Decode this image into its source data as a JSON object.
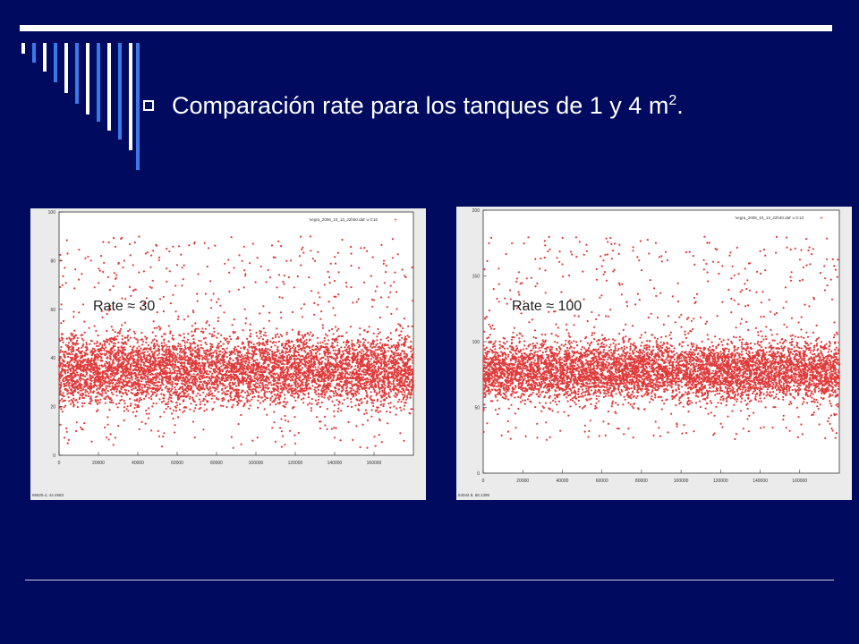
{
  "slide": {
    "title_main": "Comparación rate para los tanques de 1 y 4 m",
    "title_sup": "2",
    "title_end": "."
  },
  "colors": {
    "background": "#000a5e",
    "accent_stripes": [
      "#ffffff",
      "#3b79e6"
    ],
    "points": "#e03a3a"
  },
  "chart_data": [
    {
      "type": "scatter",
      "title": "",
      "annotation": "Rate ≈ 30",
      "legend": "'vegra_2006_10_13_22h50.dat' u 0:10",
      "legend_placement": "top-right",
      "xlim": [
        0,
        180000
      ],
      "ylim": [
        0,
        100
      ],
      "xticks": [
        "0",
        "20000",
        "40000",
        "60000",
        "80000",
        "100000",
        "120000",
        "140000",
        "160000"
      ],
      "yticks": [
        "0",
        "20",
        "40",
        "60",
        "80",
        "100"
      ],
      "status_text": "66825.4,  44.4583",
      "grid": false,
      "mean_rate": 30,
      "dense_range": [
        15,
        55
      ],
      "max_outlier": 90,
      "min_value": 3
    },
    {
      "type": "scatter",
      "title": "",
      "annotation": "Rate ≈ 100",
      "legend": "'vegra_2006_10_13_22h40.dat' u 0:13",
      "legend_placement": "top-right",
      "xlim": [
        0,
        180000
      ],
      "ylim": [
        0,
        200
      ],
      "xticks": [
        "0",
        "20000",
        "40000",
        "60000",
        "80000",
        "100000",
        "120000",
        "140000",
        "160000"
      ],
      "yticks": [
        "0",
        "50",
        "100",
        "150",
        "200"
      ],
      "status_text": "64044.9,  58.1395",
      "grid": false,
      "mean_rate": 100,
      "dense_range": [
        45,
        110
      ],
      "max_outlier": 180,
      "min_value": 25
    }
  ]
}
